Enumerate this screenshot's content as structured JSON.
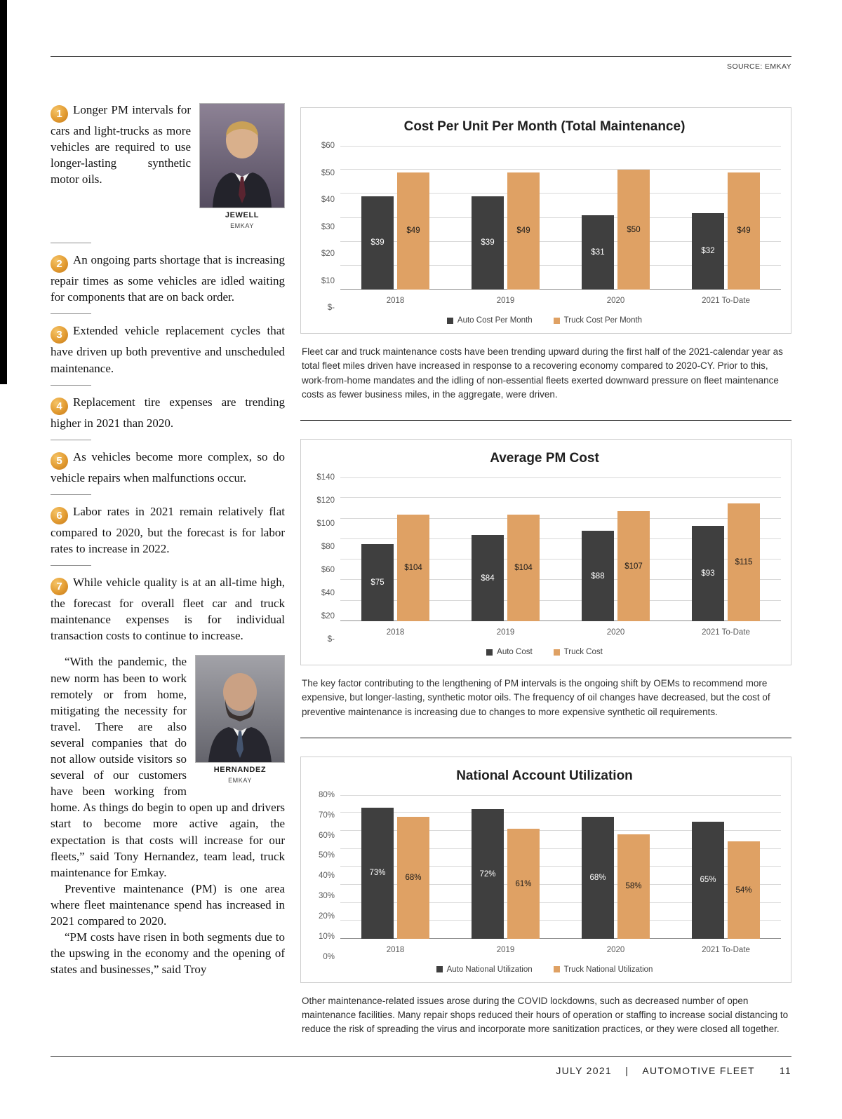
{
  "page": {
    "source_label": "SOURCE: EMKAY",
    "footer": {
      "issue": "JULY 2021",
      "separator": "|",
      "magazine": "AUTOMOTIVE FLEET",
      "page_number": "11"
    }
  },
  "article": {
    "items": [
      {
        "number": "1",
        "text": "Longer PM intervals for cars and light-trucks as more vehicles are required to use longer-lasting synthetic motor oils."
      },
      {
        "number": "2",
        "text": "An ongoing parts shortage that is increasing repair times as some vehicles are idled waiting for components that are on back order."
      },
      {
        "number": "3",
        "text": "Extended vehicle replacement cycles that have driven up both preventive and unscheduled maintenance."
      },
      {
        "number": "4",
        "text": "Replacement tire expenses are trending higher in 2021 than 2020."
      },
      {
        "number": "5",
        "text": "As vehicles become more complex, so do vehicle repairs when malfunctions occur."
      },
      {
        "number": "6",
        "text": "Labor rates in 2021 remain relatively flat compared to 2020, but the forecast is for labor rates to increase in 2022."
      },
      {
        "number": "7",
        "text": "While vehicle quality is at an all-time high, the forecast for overall fleet car and truck maintenance expenses is for individual transaction costs to continue to increase."
      }
    ],
    "paragraphs": [
      "“With the pandemic, the new norm has been to work remotely or from home, mitigating the necessity for travel. There are also several companies that do not allow outside visitors so several of our customers have been working from home. As things do begin to open up and drivers start to become more active again, the expectation is that costs will increase for our fleets,” said Tony Hernandez, team lead, truck maintenance for Emkay.",
      "Preventive maintenance (PM) is one area where fleet maintenance spend has increased in 2021 compared to 2020.",
      "“PM costs have risen in both segments due to the upswing in the economy and the opening of states and businesses,” said Troy"
    ],
    "photos": [
      {
        "name": "JEWELL",
        "org": "EMKAY"
      },
      {
        "name": "HERNANDEZ",
        "org": "EMKAY"
      }
    ]
  },
  "captions": [
    "Fleet car and truck maintenance costs have been trending upward during the first half of the 2021-calendar year as total fleet miles driven have increased in response to a recovering economy compared to 2020-CY. Prior to this, work-from-home mandates and the idling of non-essential fleets exerted downward pressure on fleet maintenance costs as fewer business miles, in the aggregate, were driven.",
    "The key factor contributing to the lengthening of PM intervals is the ongoing shift by OEMs to recommend more expensive, but longer-lasting, synthetic motor oils. The frequency of oil changes have decreased, but the cost of preventive maintenance is increasing due to changes to more expensive synthetic oil requirements.",
    "Other maintenance-related issues arose during the COVID lockdowns, such as decreased number of open maintenance facilities. Many repair shops reduced their hours of operation or staffing to increase social distancing to reduce the risk of spreading the virus and incorporate more sanitization practices, or they were closed all together."
  ],
  "chart_data": [
    {
      "type": "bar",
      "title": "Cost Per Unit Per Month (Total Maintenance)",
      "categories": [
        "2018",
        "2019",
        "2020",
        "2021 To-Date"
      ],
      "series": [
        {
          "name": "Auto Cost Per Month",
          "values": [
            39,
            39,
            31,
            32
          ],
          "color": "#3f3f3f",
          "label_color": "#ffffff"
        },
        {
          "name": "Truck Cost Per Month",
          "values": [
            49,
            49,
            50,
            49
          ],
          "color": "#dfa164",
          "label_color": "#1a1a1a"
        }
      ],
      "value_prefix": "$",
      "value_suffix": "",
      "ylim": [
        0,
        60
      ],
      "ytick_step": 10,
      "ytick_labels": [
        "$-",
        "$10",
        "$20",
        "$30",
        "$40",
        "$50",
        "$60"
      ],
      "grid": true,
      "legend_position": "bottom"
    },
    {
      "type": "bar",
      "title": "Average PM Cost",
      "categories": [
        "2018",
        "2019",
        "2020",
        "2021 To-Date"
      ],
      "series": [
        {
          "name": "Auto Cost",
          "values": [
            75,
            84,
            88,
            93
          ],
          "color": "#3f3f3f",
          "label_color": "#ffffff"
        },
        {
          "name": "Truck Cost",
          "values": [
            104,
            104,
            107,
            115
          ],
          "color": "#dfa164",
          "label_color": "#1a1a1a"
        }
      ],
      "value_prefix": "$",
      "value_suffix": "",
      "ylim": [
        0,
        140
      ],
      "ytick_step": 20,
      "ytick_labels": [
        "$-",
        "$20",
        "$40",
        "$60",
        "$80",
        "$100",
        "$120",
        "$140"
      ],
      "grid": true,
      "legend_position": "bottom"
    },
    {
      "type": "bar",
      "title": "National Account Utilization",
      "categories": [
        "2018",
        "2019",
        "2020",
        "2021 To-Date"
      ],
      "series": [
        {
          "name": "Auto National Utilization",
          "values": [
            73,
            72,
            68,
            65
          ],
          "color": "#3f3f3f",
          "label_color": "#ffffff"
        },
        {
          "name": "Truck National Utilization",
          "values": [
            68,
            61,
            58,
            54
          ],
          "color": "#dfa164",
          "label_color": "#1a1a1a"
        }
      ],
      "value_prefix": "",
      "value_suffix": "%",
      "ylim": [
        0,
        80
      ],
      "ytick_step": 10,
      "ytick_labels": [
        "0%",
        "10%",
        "20%",
        "30%",
        "40%",
        "50%",
        "60%",
        "70%",
        "80%"
      ],
      "grid": true,
      "legend_position": "bottom"
    }
  ]
}
